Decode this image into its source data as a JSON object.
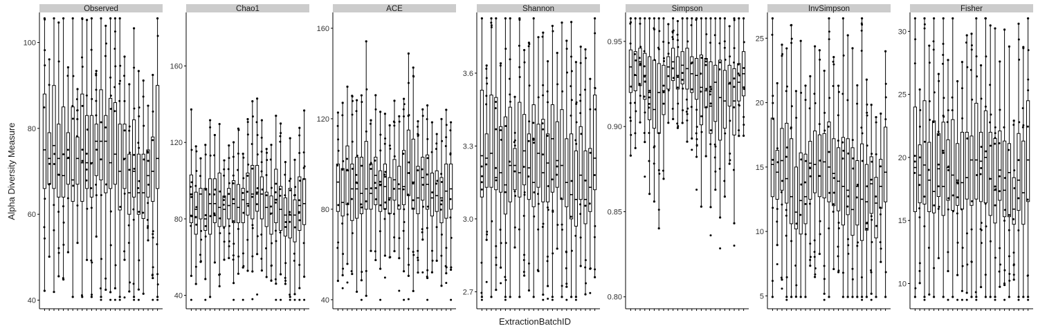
{
  "colors": {
    "strip_bg": "#cccccc",
    "box_fill": "#ffffff",
    "ink": "#000000",
    "text": "#1a1a1a"
  },
  "chart_data": {
    "type": "boxplot",
    "xlabel": "ExtractionBatchID",
    "ylabel": "Alpha Diversity Measure",
    "grid": false,
    "legend": "none",
    "n_batches": 25,
    "panels": [
      {
        "name": "Observed",
        "ylim": [
          38,
          107
        ],
        "ticks": [
          40,
          60,
          80,
          100
        ],
        "tick_labels": [
          "40",
          "60",
          "80",
          "100"
        ],
        "boxes": [
          {
            "q1": 66,
            "median": 75,
            "q3": 88
          },
          {
            "q1": 67,
            "median": 73,
            "q3": 79
          },
          {
            "q1": 66,
            "median": 76,
            "q3": 90
          },
          {
            "q1": 64,
            "median": 73,
            "q3": 81
          },
          {
            "q1": 64,
            "median": 69,
            "q3": 85
          },
          {
            "q1": 67,
            "median": 73,
            "q3": 79
          },
          {
            "q1": 63,
            "median": 68,
            "q3": 85
          },
          {
            "q1": 67,
            "median": 73,
            "q3": 78
          },
          {
            "q1": 63,
            "median": 72,
            "q3": 88
          },
          {
            "q1": 66,
            "median": 72,
            "q3": 83
          },
          {
            "q1": 64,
            "median": 72,
            "q3": 83
          },
          {
            "q1": 69,
            "median": 77,
            "q3": 81
          },
          {
            "q1": 68,
            "median": 77,
            "q3": 89
          },
          {
            "q1": 65,
            "median": 77,
            "q3": 83
          },
          {
            "q1": 66,
            "median": 72,
            "q3": 87
          },
          {
            "q1": 67,
            "median": 74,
            "q3": 86
          },
          {
            "q1": 61,
            "median": 70,
            "q3": 81
          },
          {
            "q1": 66,
            "median": 73,
            "q3": 81
          },
          {
            "q1": 60,
            "median": 65,
            "q3": 74
          },
          {
            "q1": 64,
            "median": 70,
            "q3": 82
          },
          {
            "q1": 60,
            "median": 65,
            "q3": 74
          },
          {
            "q1": 59,
            "median": 65,
            "q3": 74
          },
          {
            "q1": 64,
            "median": 69,
            "q3": 75
          },
          {
            "q1": 63,
            "median": 70,
            "q3": 78
          },
          {
            "q1": 66,
            "median": 73,
            "q3": 90
          }
        ]
      },
      {
        "name": "Chao1",
        "ylim": [
          33,
          188
        ],
        "ticks": [
          40,
          80,
          120,
          160
        ],
        "tick_labels": [
          "40",
          "80",
          "120",
          "160"
        ],
        "boxes": [
          {
            "q1": 78,
            "median": 93,
            "q3": 103
          },
          {
            "q1": 72,
            "median": 85,
            "q3": 94
          },
          {
            "q1": 80,
            "median": 93,
            "q3": 96
          },
          {
            "q1": 74,
            "median": 80,
            "q3": 96
          },
          {
            "q1": 72,
            "median": 88,
            "q3": 101
          },
          {
            "q1": 78,
            "median": 88,
            "q3": 101
          },
          {
            "q1": 76,
            "median": 86,
            "q3": 104
          },
          {
            "q1": 76,
            "median": 85,
            "q3": 92
          },
          {
            "q1": 80,
            "median": 87,
            "q3": 96
          },
          {
            "q1": 78,
            "median": 88,
            "q3": 100
          },
          {
            "q1": 78,
            "median": 86,
            "q3": 98
          },
          {
            "q1": 78,
            "median": 90,
            "q3": 96
          },
          {
            "q1": 82,
            "median": 88,
            "q3": 104
          },
          {
            "q1": 80,
            "median": 93,
            "q3": 108
          },
          {
            "q1": 84,
            "median": 94,
            "q3": 108
          },
          {
            "q1": 80,
            "median": 93,
            "q3": 102
          },
          {
            "q1": 76,
            "median": 86,
            "q3": 94
          },
          {
            "q1": 72,
            "median": 83,
            "q3": 92
          },
          {
            "q1": 78,
            "median": 90,
            "q3": 106
          },
          {
            "q1": 74,
            "median": 85,
            "q3": 97
          },
          {
            "q1": 71,
            "median": 82,
            "q3": 91
          },
          {
            "q1": 70,
            "median": 82,
            "q3": 96
          },
          {
            "q1": 68,
            "median": 82,
            "q3": 90
          },
          {
            "q1": 74,
            "median": 87,
            "q3": 102
          },
          {
            "q1": 77,
            "median": 88,
            "q3": 101
          }
        ]
      },
      {
        "name": "ACE",
        "ylim": [
          36,
          167
        ],
        "ticks": [
          40,
          80,
          120,
          160
        ],
        "tick_labels": [
          "40",
          "80",
          "120",
          "160"
        ],
        "boxes": [
          {
            "q1": 79,
            "median": 92,
            "q3": 100
          },
          {
            "q1": 77,
            "median": 83,
            "q3": 98
          },
          {
            "q1": 82,
            "median": 97,
            "q3": 108
          },
          {
            "q1": 75,
            "median": 89,
            "q3": 100
          },
          {
            "q1": 76,
            "median": 89,
            "q3": 103
          },
          {
            "q1": 78,
            "median": 87,
            "q3": 103
          },
          {
            "q1": 80,
            "median": 89,
            "q3": 110
          },
          {
            "q1": 80,
            "median": 87,
            "q3": 100
          },
          {
            "q1": 82,
            "median": 95,
            "q3": 103
          },
          {
            "q1": 79,
            "median": 91,
            "q3": 97
          },
          {
            "q1": 80,
            "median": 90,
            "q3": 100
          },
          {
            "q1": 78,
            "median": 85,
            "q3": 94
          },
          {
            "q1": 84,
            "median": 93,
            "q3": 102
          },
          {
            "q1": 80,
            "median": 89,
            "q3": 99
          },
          {
            "q1": 82,
            "median": 90,
            "q3": 106
          },
          {
            "q1": 86,
            "median": 96,
            "q3": 115
          },
          {
            "q1": 80,
            "median": 92,
            "q3": 111
          },
          {
            "q1": 78,
            "median": 85,
            "q3": 99
          },
          {
            "q1": 84,
            "median": 94,
            "q3": 103
          },
          {
            "q1": 80,
            "median": 91,
            "q3": 104
          },
          {
            "q1": 77,
            "median": 85,
            "q3": 96
          },
          {
            "q1": 79,
            "median": 86,
            "q3": 97
          },
          {
            "q1": 74,
            "median": 85,
            "q3": 94
          },
          {
            "q1": 76,
            "median": 88,
            "q3": 100
          },
          {
            "q1": 80,
            "median": 89,
            "q3": 100
          }
        ]
      },
      {
        "name": "Shannon",
        "ylim": [
          2.63,
          3.85
        ],
        "ticks": [
          2.7,
          3.0,
          3.3,
          3.6
        ],
        "tick_labels": [
          "2.7",
          "3.0",
          "3.3",
          "3.6"
        ],
        "boxes": [
          {
            "q1": 3.09,
            "median": 3.26,
            "q3": 3.53
          },
          {
            "q1": 3.13,
            "median": 3.25,
            "q3": 3.35
          },
          {
            "q1": 3.13,
            "median": 3.27,
            "q3": 3.51
          },
          {
            "q1": 3.12,
            "median": 3.17,
            "q3": 3.5
          },
          {
            "q1": 3.11,
            "median": 3.19,
            "q3": 3.38
          },
          {
            "q1": 3.02,
            "median": 3.14,
            "q3": 3.42
          },
          {
            "q1": 3.07,
            "median": 3.22,
            "q3": 3.46
          },
          {
            "q1": 3.12,
            "median": 3.22,
            "q3": 3.29
          },
          {
            "q1": 3.09,
            "median": 3.19,
            "q3": 3.48
          },
          {
            "q1": 3.14,
            "median": 3.28,
            "q3": 3.43
          },
          {
            "q1": 3.08,
            "median": 3.21,
            "q3": 3.35
          },
          {
            "q1": 3.05,
            "median": 3.15,
            "q3": 3.47
          },
          {
            "q1": 3.13,
            "median": 3.27,
            "q3": 3.39
          },
          {
            "q1": 3.07,
            "median": 3.19,
            "q3": 3.41
          },
          {
            "q1": 3.07,
            "median": 3.23,
            "q3": 3.35
          },
          {
            "q1": 3.11,
            "median": 3.33,
            "q3": 3.47
          },
          {
            "q1": 3.13,
            "median": 3.24,
            "q3": 3.4
          },
          {
            "q1": 3.08,
            "median": 3.22,
            "q3": 3.45
          },
          {
            "q1": 3.05,
            "median": 3.15,
            "q3": 3.33
          },
          {
            "q1": 3.0,
            "median": 3.1,
            "q3": 3.35
          },
          {
            "q1": 2.97,
            "median": 3.08,
            "q3": 3.28
          },
          {
            "q1": 3.08,
            "median": 3.18,
            "q3": 3.38
          },
          {
            "q1": 2.98,
            "median": 3.08,
            "q3": 3.28
          },
          {
            "q1": 3.03,
            "median": 3.13,
            "q3": 3.29
          },
          {
            "q1": 3.12,
            "median": 3.25,
            "q3": 3.51
          }
        ]
      },
      {
        "name": "Simpson",
        "ylim": [
          0.793,
          0.967
        ],
        "ticks": [
          0.8,
          0.85,
          0.9,
          0.95
        ],
        "tick_labels": [
          "0.80",
          "0.85",
          "0.90",
          "0.95"
        ],
        "boxes": [
          {
            "q1": 0.92,
            "median": 0.935,
            "q3": 0.945
          },
          {
            "q1": 0.921,
            "median": 0.93,
            "q3": 0.944
          },
          {
            "q1": 0.924,
            "median": 0.938,
            "q3": 0.946
          },
          {
            "q1": 0.916,
            "median": 0.93,
            "q3": 0.943
          },
          {
            "q1": 0.904,
            "median": 0.92,
            "q3": 0.941
          },
          {
            "q1": 0.899,
            "median": 0.91,
            "q3": 0.939
          },
          {
            "q1": 0.896,
            "median": 0.92,
            "q3": 0.937
          },
          {
            "q1": 0.907,
            "median": 0.921,
            "q3": 0.936
          },
          {
            "q1": 0.922,
            "median": 0.935,
            "q3": 0.941
          },
          {
            "q1": 0.927,
            "median": 0.938,
            "q3": 0.946
          },
          {
            "q1": 0.922,
            "median": 0.93,
            "q3": 0.941
          },
          {
            "q1": 0.925,
            "median": 0.936,
            "q3": 0.944
          },
          {
            "q1": 0.922,
            "median": 0.934,
            "q3": 0.946
          },
          {
            "q1": 0.92,
            "median": 0.931,
            "q3": 0.941
          },
          {
            "q1": 0.916,
            "median": 0.93,
            "q3": 0.94
          },
          {
            "q1": 0.901,
            "median": 0.923,
            "q3": 0.942
          },
          {
            "q1": 0.911,
            "median": 0.921,
            "q3": 0.94
          },
          {
            "q1": 0.896,
            "median": 0.912,
            "q3": 0.938
          },
          {
            "q1": 0.903,
            "median": 0.926,
            "q3": 0.936
          },
          {
            "q1": 0.892,
            "median": 0.917,
            "q3": 0.939
          },
          {
            "q1": 0.899,
            "median": 0.915,
            "q3": 0.933
          },
          {
            "q1": 0.912,
            "median": 0.925,
            "q3": 0.936
          },
          {
            "q1": 0.895,
            "median": 0.915,
            "q3": 0.934
          },
          {
            "q1": 0.915,
            "median": 0.926,
            "q3": 0.937
          },
          {
            "q1": 0.918,
            "median": 0.931,
            "q3": 0.944
          }
        ]
      },
      {
        "name": "InvSimpson",
        "ylim": [
          4.0,
          27.0
        ],
        "ticks": [
          5,
          10,
          15,
          20,
          25
        ],
        "tick_labels": [
          "5",
          "10",
          "15",
          "20",
          "25"
        ],
        "boxes": [
          {
            "q1": 12.7,
            "median": 15.2,
            "q3": 18.8
          },
          {
            "q1": 12.5,
            "median": 14.6,
            "q3": 16.3
          },
          {
            "q1": 13.2,
            "median": 15.5,
            "q3": 18.0
          },
          {
            "q1": 12.2,
            "median": 14.1,
            "q3": 18.4
          },
          {
            "q1": 10.6,
            "median": 12.7,
            "q3": 17.2
          },
          {
            "q1": 10.2,
            "median": 11.5,
            "q3": 15.0
          },
          {
            "q1": 9.8,
            "median": 12.4,
            "q3": 16.1
          },
          {
            "q1": 10.6,
            "median": 12.7,
            "q3": 16.0
          },
          {
            "q1": 12.5,
            "median": 15.3,
            "q3": 17.0
          },
          {
            "q1": 13.0,
            "median": 15.2,
            "q3": 17.8
          },
          {
            "q1": 12.7,
            "median": 14.3,
            "q3": 17.5
          },
          {
            "q1": 12.6,
            "median": 15.4,
            "q3": 17.6
          },
          {
            "q1": 12.3,
            "median": 15.0,
            "q3": 18.5
          },
          {
            "q1": 12.0,
            "median": 14.5,
            "q3": 17.2
          },
          {
            "q1": 11.6,
            "median": 13.9,
            "q3": 16.5
          },
          {
            "q1": 10.5,
            "median": 13.5,
            "q3": 17.3
          },
          {
            "q1": 11.3,
            "median": 13.2,
            "q3": 17.2
          },
          {
            "q1": 9.7,
            "median": 11.7,
            "q3": 16.5
          },
          {
            "q1": 10.5,
            "median": 13.5,
            "q3": 15.5
          },
          {
            "q1": 9.3,
            "median": 12.5,
            "q3": 16.8
          },
          {
            "q1": 10.1,
            "median": 12.3,
            "q3": 15.2
          },
          {
            "q1": 11.4,
            "median": 13.7,
            "q3": 15.8
          },
          {
            "q1": 9.5,
            "median": 12.2,
            "q3": 14.2
          },
          {
            "q1": 11.8,
            "median": 13.5,
            "q3": 15.6
          },
          {
            "q1": 12.3,
            "median": 14.6,
            "q3": 18.1
          }
        ]
      },
      {
        "name": "Fisher",
        "ylim": [
          8.0,
          31.5
        ],
        "ticks": [
          10,
          15,
          20,
          25,
          30
        ],
        "tick_labels": [
          "10",
          "15",
          "20",
          "25",
          "30"
        ],
        "boxes": [
          {
            "q1": 15.7,
            "median": 19.2,
            "q3": 24.0
          },
          {
            "q1": 16.4,
            "median": 18.6,
            "q3": 21.0
          },
          {
            "q1": 16.3,
            "median": 19.4,
            "q3": 24.5
          },
          {
            "q1": 15.7,
            "median": 18.2,
            "q3": 21.2
          },
          {
            "q1": 15.6,
            "median": 17.3,
            "q3": 22.9
          },
          {
            "q1": 16.9,
            "median": 19.1,
            "q3": 21.9
          },
          {
            "q1": 15.4,
            "median": 17.7,
            "q3": 22.8
          },
          {
            "q1": 16.6,
            "median": 19.2,
            "q3": 21.4
          },
          {
            "q1": 15.8,
            "median": 18.6,
            "q3": 23.0
          },
          {
            "q1": 16.2,
            "median": 18.2,
            "q3": 21.1
          },
          {
            "q1": 15.9,
            "median": 18.0,
            "q3": 22.0
          },
          {
            "q1": 16.7,
            "median": 18.4,
            "q3": 22.0
          },
          {
            "q1": 16.2,
            "median": 19.8,
            "q3": 21.7
          },
          {
            "q1": 16.7,
            "median": 19.8,
            "q3": 24.3
          },
          {
            "q1": 16.5,
            "median": 19.7,
            "q3": 22.0
          },
          {
            "q1": 16.4,
            "median": 20.0,
            "q3": 23.7
          },
          {
            "q1": 15.4,
            "median": 18.3,
            "q3": 22.0
          },
          {
            "q1": 14.8,
            "median": 17.4,
            "q3": 21.5
          },
          {
            "q1": 16.6,
            "median": 19.0,
            "q3": 22.1
          },
          {
            "q1": 15.3,
            "median": 17.4,
            "q3": 21.3
          },
          {
            "q1": 15.3,
            "median": 18.8,
            "q3": 21.1
          },
          {
            "q1": 14.7,
            "median": 15.9,
            "q3": 18.4
          },
          {
            "q1": 15.8,
            "median": 18.2,
            "q3": 21.9
          },
          {
            "q1": 14.7,
            "median": 17.2,
            "q3": 21.3
          },
          {
            "q1": 16.5,
            "median": 19.8,
            "q3": 24.5
          }
        ]
      }
    ]
  }
}
